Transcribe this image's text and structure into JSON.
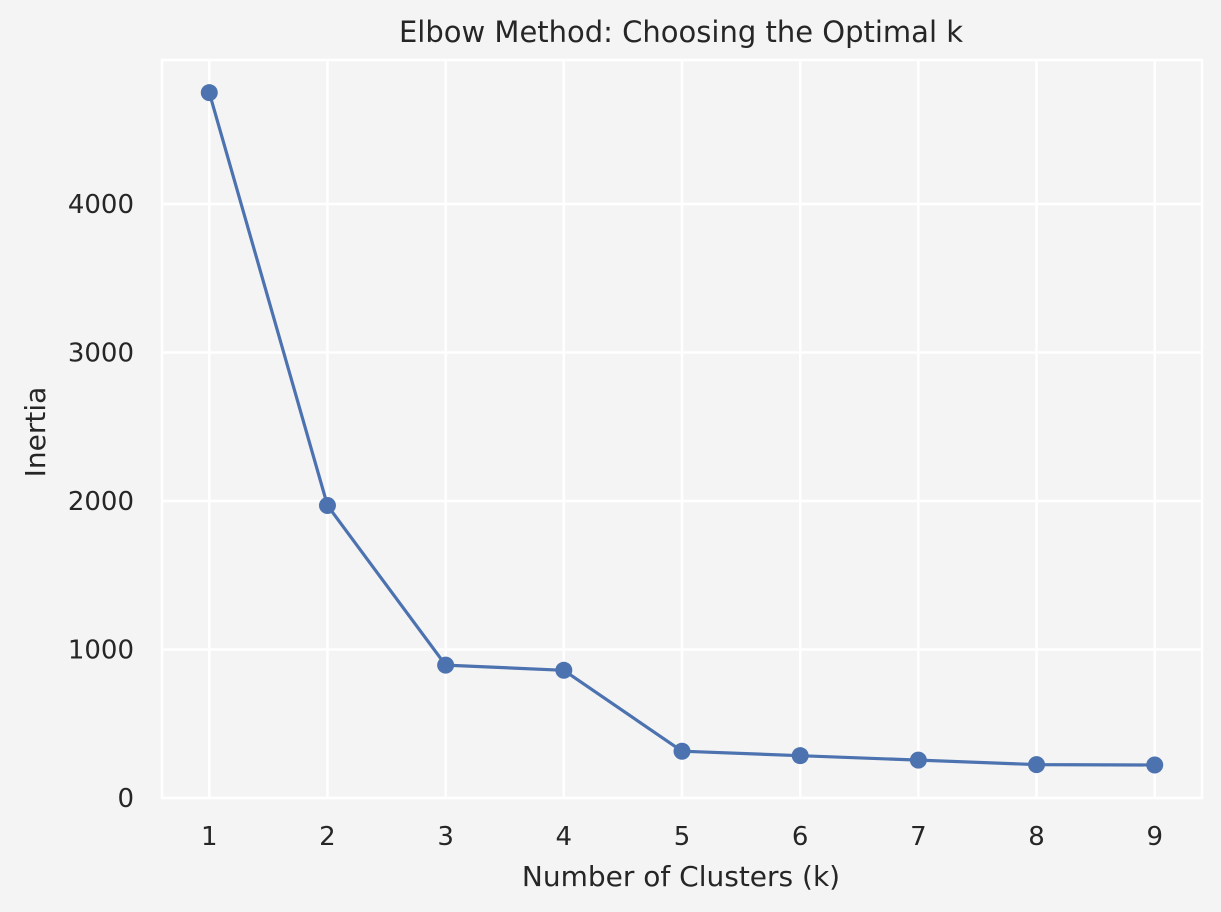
{
  "chart_data": {
    "type": "line",
    "title": "Elbow Method: Choosing the Optimal k",
    "xlabel": "Number of Clusters (k)",
    "ylabel": "Inertia",
    "x": [
      1,
      2,
      3,
      4,
      5,
      6,
      7,
      8,
      9
    ],
    "series": [
      {
        "name": "Inertia",
        "values": [
          4750,
          1970,
          895,
          860,
          315,
          285,
          255,
          225,
          222
        ],
        "marker": "circle"
      }
    ],
    "xticks": [
      1,
      2,
      3,
      4,
      5,
      6,
      7,
      8,
      9
    ],
    "yticks": [
      0,
      1000,
      2000,
      3000,
      4000
    ],
    "xlim": [
      0.6,
      9.4
    ],
    "ylim": [
      0,
      4970
    ],
    "grid": true,
    "colors": {
      "line": "#4c72b0",
      "grid": "#ffffff",
      "background": "#f4f4f4",
      "text": "#262626"
    }
  }
}
